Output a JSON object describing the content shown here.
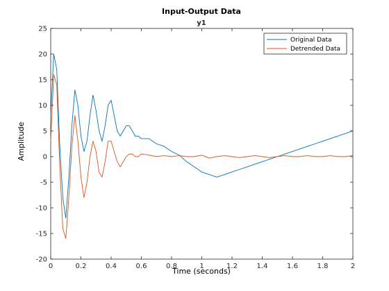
{
  "chart_data": {
    "type": "line",
    "title": "Input-Output Data",
    "subtitle": "y1",
    "xlabel": "Time (seconds)",
    "ylabel": "Amplitude",
    "xlim": [
      0,
      2
    ],
    "ylim": [
      -20,
      25
    ],
    "xticks": [
      0,
      0.2,
      0.4,
      0.6,
      0.8,
      1,
      1.2,
      1.4,
      1.6,
      1.8,
      2
    ],
    "xtick_labels": [
      "0",
      "0.2",
      "0.4",
      "0.6",
      "0.8",
      "1",
      "1.2",
      "1.4",
      "1.6",
      "1.8",
      "2"
    ],
    "yticks": [
      -20,
      -15,
      -10,
      -5,
      0,
      5,
      10,
      15,
      20,
      25
    ],
    "ytick_labels": [
      "-20",
      "-15",
      "-10",
      "-5",
      "0",
      "5",
      "10",
      "15",
      "20",
      "25"
    ],
    "grid": false,
    "legend_position": "top-right",
    "series": [
      {
        "name": "Original Data",
        "color": "#0072BD",
        "x": [
          0,
          0.02,
          0.04,
          0.06,
          0.08,
          0.1,
          0.12,
          0.14,
          0.16,
          0.18,
          0.2,
          0.22,
          0.24,
          0.26,
          0.28,
          0.3,
          0.32,
          0.34,
          0.36,
          0.38,
          0.4,
          0.42,
          0.44,
          0.46,
          0.48,
          0.5,
          0.52,
          0.54,
          0.56,
          0.58,
          0.6,
          0.65,
          0.7,
          0.75,
          0.8,
          0.85,
          0.9,
          0.95,
          1.0,
          1.05,
          1.1,
          1.15,
          1.2,
          1.25,
          1.3,
          1.35,
          1.4,
          1.45,
          1.5,
          1.55,
          1.6,
          1.65,
          1.7,
          1.75,
          1.8,
          1.85,
          1.9,
          1.95,
          2.0
        ],
        "values": [
          8,
          20,
          17,
          2,
          -8,
          -12,
          -4,
          6,
          13,
          10,
          4,
          1,
          3,
          8,
          12,
          9,
          5,
          3,
          6,
          10,
          11,
          8,
          5,
          4,
          5,
          6,
          6,
          5,
          4,
          4,
          3.5,
          3.5,
          2.5,
          2,
          1,
          0.3,
          -1,
          -2,
          -3,
          -3.5,
          -4,
          -3.5,
          -3,
          -2.5,
          -2,
          -1.5,
          -1,
          -0.5,
          0,
          0.5,
          1,
          1.5,
          2,
          2.5,
          3,
          3.5,
          4,
          4.5,
          5
        ]
      },
      {
        "name": "Detrended Data",
        "color": "#D95319",
        "x": [
          0,
          0.02,
          0.04,
          0.06,
          0.08,
          0.1,
          0.12,
          0.14,
          0.16,
          0.18,
          0.2,
          0.22,
          0.24,
          0.26,
          0.28,
          0.3,
          0.32,
          0.34,
          0.36,
          0.38,
          0.4,
          0.42,
          0.44,
          0.46,
          0.48,
          0.5,
          0.52,
          0.54,
          0.56,
          0.58,
          0.6,
          0.65,
          0.7,
          0.75,
          0.8,
          0.85,
          0.9,
          0.95,
          1.0,
          1.05,
          1.1,
          1.15,
          1.2,
          1.25,
          1.3,
          1.35,
          1.4,
          1.45,
          1.5,
          1.55,
          1.6,
          1.65,
          1.7,
          1.75,
          1.8,
          1.85,
          1.9,
          1.95,
          2.0
        ],
        "values": [
          3,
          16,
          14,
          -2,
          -14,
          -16,
          -8,
          2,
          8,
          3,
          -4,
          -8,
          -5,
          0,
          3,
          1,
          -3,
          -4,
          -1,
          3,
          3,
          1,
          -1,
          -2,
          -1,
          0,
          0.5,
          0.5,
          0,
          0,
          0.5,
          0.3,
          0,
          0.2,
          0,
          0.2,
          0,
          0,
          0.3,
          -0.3,
          0,
          0.2,
          0,
          -0.2,
          0,
          0.2,
          0,
          -0.2,
          0,
          0.2,
          0,
          0,
          0.2,
          0,
          0,
          0.2,
          0,
          0,
          0.2
        ]
      }
    ]
  }
}
